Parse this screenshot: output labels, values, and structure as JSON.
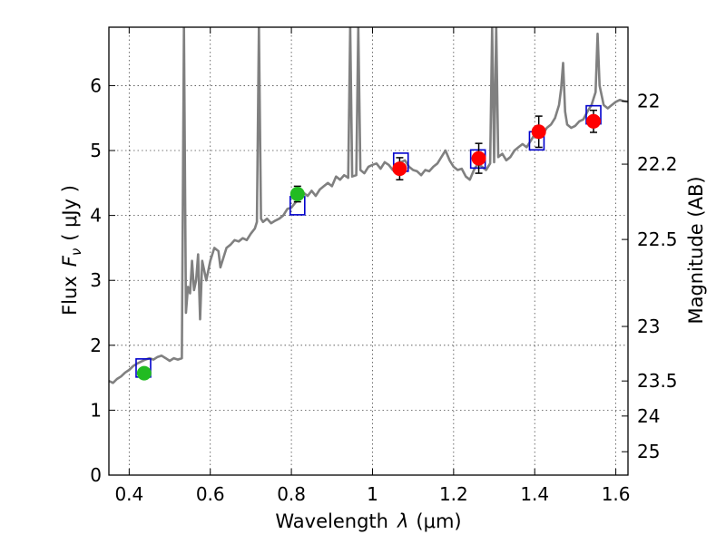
{
  "chart_data": {
    "type": "scatter",
    "title": "",
    "xlabel": "Wavelength",
    "xlabel_symbol": "λ",
    "xlabel_unit": "(μm)",
    "ylabel": "Flux",
    "ylabel_symbol": "F",
    "ylabel_sub": "ν",
    "ylabel_unit": "( μJy )",
    "y2label": "Magnitude (AB)",
    "xlim": [
      0.35,
      1.63
    ],
    "ylim": [
      0,
      6.9
    ],
    "grid": true,
    "x_ticks": [
      {
        "value": 0.4,
        "label": "0.4"
      },
      {
        "value": 0.6,
        "label": "0.6"
      },
      {
        "value": 0.8,
        "label": "0.8"
      },
      {
        "value": 1.0,
        "label": "1"
      },
      {
        "value": 1.2,
        "label": "1.2"
      },
      {
        "value": 1.4,
        "label": "1.4"
      },
      {
        "value": 1.6,
        "label": "1.6"
      }
    ],
    "y_ticks": [
      {
        "value": 0,
        "label": "0"
      },
      {
        "value": 1,
        "label": "1"
      },
      {
        "value": 2,
        "label": "2"
      },
      {
        "value": 3,
        "label": "3"
      },
      {
        "value": 4,
        "label": "4"
      },
      {
        "value": 5,
        "label": "5"
      },
      {
        "value": 6,
        "label": "6"
      }
    ],
    "y2_ticks": [
      {
        "flux": 5.76,
        "label": "22"
      },
      {
        "flux": 4.79,
        "label": "22.2"
      },
      {
        "flux": 3.63,
        "label": "22.5"
      },
      {
        "flux": 2.29,
        "label": "23"
      },
      {
        "flux": 1.45,
        "label": "23.5"
      },
      {
        "flux": 0.91,
        "label": "24"
      },
      {
        "flux": 0.36,
        "label": "25"
      }
    ],
    "series": [
      {
        "kind": "spectrum",
        "color": "#808080",
        "points": [
          [
            0.35,
            1.45
          ],
          [
            0.36,
            1.42
          ],
          [
            0.37,
            1.48
          ],
          [
            0.38,
            1.52
          ],
          [
            0.39,
            1.58
          ],
          [
            0.4,
            1.62
          ],
          [
            0.41,
            1.68
          ],
          [
            0.42,
            1.72
          ],
          [
            0.43,
            1.75
          ],
          [
            0.44,
            1.78
          ],
          [
            0.45,
            1.8
          ],
          [
            0.46,
            1.78
          ],
          [
            0.47,
            1.82
          ],
          [
            0.48,
            1.84
          ],
          [
            0.49,
            1.8
          ],
          [
            0.5,
            1.76
          ],
          [
            0.51,
            1.8
          ],
          [
            0.52,
            1.78
          ],
          [
            0.53,
            1.8
          ],
          [
            0.535,
            6.9
          ],
          [
            0.54,
            2.5
          ],
          [
            0.545,
            2.9
          ],
          [
            0.55,
            2.8
          ],
          [
            0.555,
            3.3
          ],
          [
            0.56,
            2.85
          ],
          [
            0.565,
            3.0
          ],
          [
            0.57,
            3.4
          ],
          [
            0.575,
            2.4
          ],
          [
            0.58,
            3.3
          ],
          [
            0.59,
            3.0
          ],
          [
            0.6,
            3.3
          ],
          [
            0.61,
            3.5
          ],
          [
            0.62,
            3.45
          ],
          [
            0.625,
            3.2
          ],
          [
            0.63,
            3.3
          ],
          [
            0.64,
            3.5
          ],
          [
            0.65,
            3.55
          ],
          [
            0.66,
            3.62
          ],
          [
            0.67,
            3.6
          ],
          [
            0.68,
            3.65
          ],
          [
            0.69,
            3.62
          ],
          [
            0.7,
            3.72
          ],
          [
            0.71,
            3.8
          ],
          [
            0.715,
            3.9
          ],
          [
            0.72,
            6.9
          ],
          [
            0.725,
            3.95
          ],
          [
            0.73,
            3.9
          ],
          [
            0.74,
            3.95
          ],
          [
            0.75,
            3.88
          ],
          [
            0.76,
            3.92
          ],
          [
            0.77,
            3.95
          ],
          [
            0.78,
            4.0
          ],
          [
            0.79,
            4.1
          ],
          [
            0.8,
            4.12
          ],
          [
            0.81,
            4.2
          ],
          [
            0.82,
            4.25
          ],
          [
            0.83,
            4.35
          ],
          [
            0.84,
            4.3
          ],
          [
            0.85,
            4.38
          ],
          [
            0.86,
            4.3
          ],
          [
            0.87,
            4.4
          ],
          [
            0.88,
            4.45
          ],
          [
            0.89,
            4.5
          ],
          [
            0.9,
            4.45
          ],
          [
            0.91,
            4.6
          ],
          [
            0.92,
            4.55
          ],
          [
            0.93,
            4.62
          ],
          [
            0.94,
            4.58
          ],
          [
            0.945,
            6.9
          ],
          [
            0.95,
            4.6
          ],
          [
            0.96,
            4.62
          ],
          [
            0.965,
            6.9
          ],
          [
            0.97,
            4.7
          ],
          [
            0.98,
            4.65
          ],
          [
            0.99,
            4.75
          ],
          [
            1.0,
            4.78
          ],
          [
            1.01,
            4.8
          ],
          [
            1.02,
            4.72
          ],
          [
            1.03,
            4.82
          ],
          [
            1.04,
            4.78
          ],
          [
            1.05,
            4.7
          ],
          [
            1.06,
            4.75
          ],
          [
            1.07,
            4.82
          ],
          [
            1.08,
            4.85
          ],
          [
            1.09,
            4.75
          ],
          [
            1.1,
            4.7
          ],
          [
            1.11,
            4.68
          ],
          [
            1.12,
            4.62
          ],
          [
            1.13,
            4.7
          ],
          [
            1.14,
            4.68
          ],
          [
            1.15,
            4.75
          ],
          [
            1.16,
            4.8
          ],
          [
            1.17,
            4.9
          ],
          [
            1.18,
            5.0
          ],
          [
            1.19,
            4.85
          ],
          [
            1.2,
            4.75
          ],
          [
            1.21,
            4.7
          ],
          [
            1.22,
            4.72
          ],
          [
            1.23,
            4.6
          ],
          [
            1.24,
            4.55
          ],
          [
            1.25,
            4.7
          ],
          [
            1.26,
            4.8
          ],
          [
            1.27,
            4.75
          ],
          [
            1.28,
            4.7
          ],
          [
            1.29,
            4.8
          ],
          [
            1.295,
            6.9
          ],
          [
            1.3,
            4.82
          ],
          [
            1.305,
            6.9
          ],
          [
            1.31,
            4.9
          ],
          [
            1.32,
            4.95
          ],
          [
            1.33,
            4.85
          ],
          [
            1.34,
            4.9
          ],
          [
            1.35,
            5.0
          ],
          [
            1.36,
            5.05
          ],
          [
            1.37,
            5.1
          ],
          [
            1.38,
            5.05
          ],
          [
            1.39,
            5.15
          ],
          [
            1.4,
            5.25
          ],
          [
            1.41,
            5.3
          ],
          [
            1.42,
            5.25
          ],
          [
            1.43,
            5.35
          ],
          [
            1.44,
            5.4
          ],
          [
            1.45,
            5.5
          ],
          [
            1.46,
            5.7
          ],
          [
            1.465,
            5.95
          ],
          [
            1.47,
            6.35
          ],
          [
            1.475,
            5.6
          ],
          [
            1.48,
            5.4
          ],
          [
            1.49,
            5.35
          ],
          [
            1.5,
            5.38
          ],
          [
            1.51,
            5.45
          ],
          [
            1.52,
            5.48
          ],
          [
            1.53,
            5.6
          ],
          [
            1.54,
            5.7
          ],
          [
            1.55,
            5.9
          ],
          [
            1.555,
            6.8
          ],
          [
            1.56,
            6.0
          ],
          [
            1.57,
            5.7
          ],
          [
            1.58,
            5.65
          ],
          [
            1.59,
            5.7
          ],
          [
            1.6,
            5.75
          ],
          [
            1.61,
            5.78
          ],
          [
            1.62,
            5.76
          ],
          [
            1.63,
            5.75
          ]
        ]
      },
      {
        "kind": "model-box",
        "color": "#0000cc",
        "points": [
          [
            0.435,
            1.65
          ],
          [
            0.815,
            4.15
          ],
          [
            1.07,
            4.82
          ],
          [
            1.26,
            4.87
          ],
          [
            1.405,
            5.15
          ],
          [
            1.545,
            5.55
          ]
        ]
      },
      {
        "kind": "observed-green",
        "color": "#22bb22",
        "points": [
          {
            "x": 0.437,
            "y": 1.57,
            "err": 0.05
          },
          {
            "x": 0.815,
            "y": 4.33,
            "err": 0.12
          }
        ]
      },
      {
        "kind": "observed-red",
        "color": "#ff0000",
        "points": [
          {
            "x": 1.067,
            "y": 4.72,
            "err": 0.17
          },
          {
            "x": 1.262,
            "y": 4.88,
            "err": 0.23
          },
          {
            "x": 1.41,
            "y": 5.29,
            "err": 0.24
          },
          {
            "x": 1.545,
            "y": 5.45,
            "err": 0.17
          }
        ]
      }
    ]
  }
}
